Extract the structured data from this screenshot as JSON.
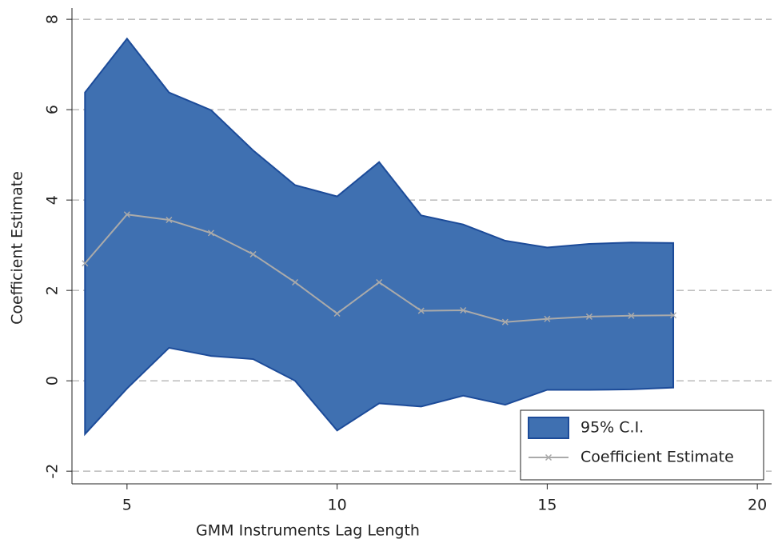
{
  "chart_data": {
    "type": "line",
    "x_label": "GMM Instruments Lag Length",
    "y_label": "Coefficient Estimate",
    "x": [
      4,
      5,
      6,
      7,
      8,
      9,
      10,
      11,
      12,
      13,
      14,
      15,
      16,
      17,
      18
    ],
    "series": [
      {
        "name": "95% C.I.",
        "type": "area",
        "color": "#3f70b1",
        "stroke": "#1c4b99",
        "upper": [
          6.38,
          7.57,
          6.38,
          5.99,
          5.1,
          4.33,
          4.08,
          4.84,
          3.66,
          3.46,
          3.1,
          2.95,
          3.03,
          3.06,
          3.05
        ],
        "lower": [
          -1.18,
          -0.17,
          0.73,
          0.55,
          0.48,
          0.0,
          -1.1,
          -0.5,
          -0.57,
          -0.33,
          -0.53,
          -0.2,
          -0.2,
          -0.19,
          -0.15
        ]
      },
      {
        "name": "Coefficient Estimate",
        "type": "line",
        "color": "#aaaaaa",
        "values": [
          2.6,
          3.68,
          3.56,
          3.27,
          2.8,
          2.18,
          1.49,
          2.18,
          1.55,
          1.56,
          1.3,
          1.37,
          1.42,
          1.44,
          1.45
        ]
      }
    ],
    "xlim": [
      3.69,
      20.34
    ],
    "xticks": [
      5,
      10,
      15,
      20
    ],
    "ylim": [
      -2.28,
      8.25
    ],
    "yticks": [
      -2,
      0,
      2,
      4,
      6,
      8
    ],
    "grid": true,
    "legend": "lower right"
  }
}
